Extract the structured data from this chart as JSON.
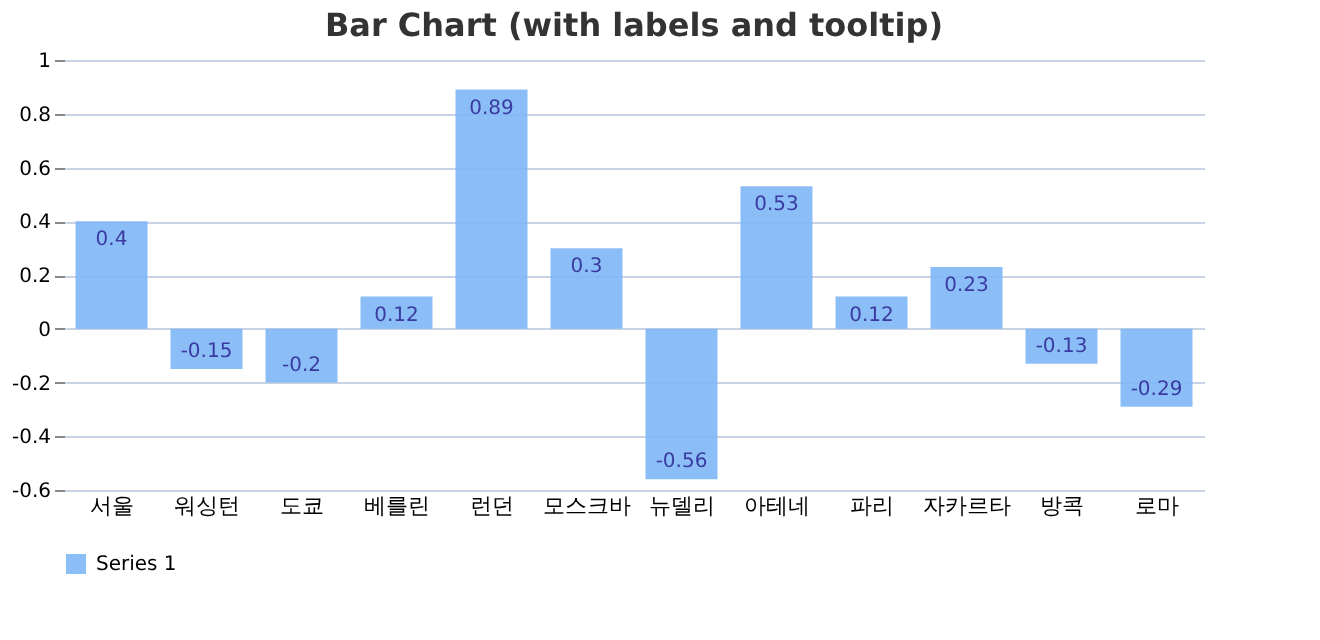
{
  "chart_data": {
    "type": "bar",
    "title": "Bar Chart (with labels and tooltip)",
    "categories": [
      "서울",
      "워싱턴",
      "도쿄",
      "베를린",
      "런던",
      "모스크바",
      "뉴델리",
      "아테네",
      "파리",
      "자카르타",
      "방콕",
      "로마"
    ],
    "series": [
      {
        "name": "Series 1",
        "color": "#7eb6f6",
        "values": [
          0.4,
          -0.15,
          -0.2,
          0.12,
          0.89,
          0.3,
          -0.56,
          0.53,
          0.12,
          0.23,
          -0.13,
          -0.29
        ]
      }
    ],
    "ylim": [
      -0.6,
      1
    ],
    "yticks": [
      -0.6,
      -0.4,
      -0.2,
      0,
      0.2,
      0.4,
      0.6,
      0.8,
      1
    ],
    "grid": "y",
    "legend": "bottom",
    "data_labels": true
  }
}
